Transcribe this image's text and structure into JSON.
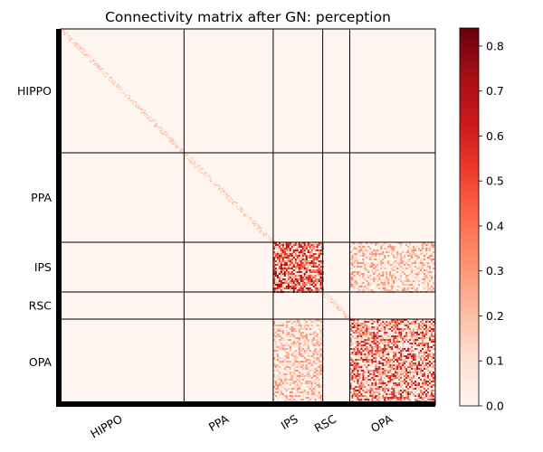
{
  "chart_data": {
    "type": "heatmap",
    "title": "Connectivity matrix after GN: perception",
    "colormap": "Reds",
    "groups": [
      {
        "label": "HIPPO",
        "start": 0,
        "end": 137
      },
      {
        "label": "PPA",
        "start": 137,
        "end": 236
      },
      {
        "label": "IPS",
        "start": 236,
        "end": 291
      },
      {
        "label": "RSC",
        "start": 291,
        "end": 321
      },
      {
        "label": "OPA",
        "start": 321,
        "end": 416
      }
    ],
    "matrix_size": 416,
    "block_mean_values": {
      "HIPPO-HIPPO": 0.03,
      "PPA-PPA": 0.03,
      "IPS-IPS": 0.45,
      "IPS-OPA": 0.2,
      "RSC-RSC": 0.04,
      "OPA-OPA": 0.4,
      "diagonal": 0.15,
      "off_diagonal_background": 0.01
    },
    "colorbar": {
      "min": 0.0,
      "max": 0.84,
      "ticks": [
        "0.0",
        "0.1",
        "0.2",
        "0.3",
        "0.4",
        "0.5",
        "0.6",
        "0.7",
        "0.8"
      ],
      "tick_values": [
        0.0,
        0.1,
        0.2,
        0.3,
        0.4,
        0.5,
        0.6,
        0.7,
        0.8
      ]
    }
  }
}
